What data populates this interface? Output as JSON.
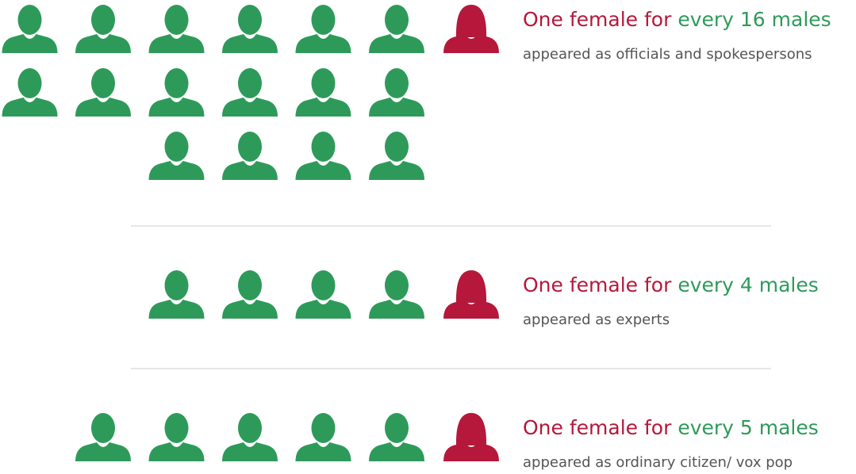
{
  "groups": [
    {
      "female_text": "One female for",
      "male_text": "every 16 males",
      "caption": "appeared as officials and spokespersons",
      "male_count": 16,
      "female_count": 1
    },
    {
      "female_text": "One female for",
      "male_text": "every 4 males",
      "caption": "appeared as experts",
      "male_count": 4,
      "female_count": 1
    },
    {
      "female_text": "One female for",
      "male_text": "every 5 males",
      "caption": "appeared as ordinary citizen/ vox pop",
      "male_count": 5,
      "female_count": 1
    }
  ],
  "male_color": "#2e9a5a",
  "female_color": "#b5183a"
}
